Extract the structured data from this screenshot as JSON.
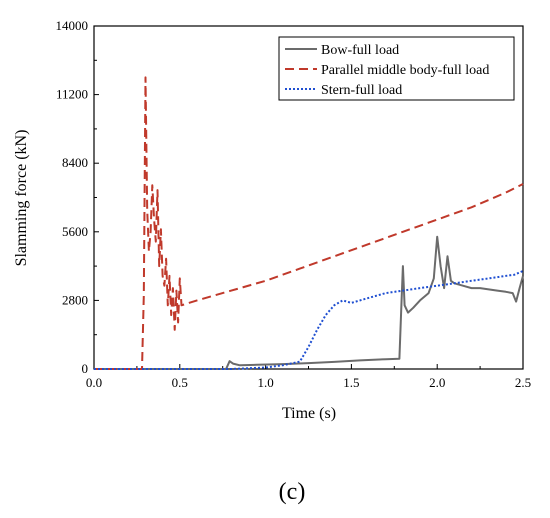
{
  "chart_data": {
    "type": "line",
    "title": "",
    "xlabel": "Time (s)",
    "ylabel": "Slamming force (kN)",
    "xlim": [
      0.0,
      2.5
    ],
    "ylim": [
      0,
      14000
    ],
    "x_ticks": [
      "0.0",
      "0.5",
      "1.0",
      "1.5",
      "2.0",
      "2.5"
    ],
    "y_ticks": [
      "0",
      "2800",
      "5600",
      "8400",
      "11200",
      "14000"
    ],
    "grid": false,
    "legend_position": "top-right",
    "panel_label": "(c)",
    "series": [
      {
        "name": "Bow-full load",
        "color": "#6b6b6b",
        "style": "solid",
        "points": [
          [
            0.0,
            0
          ],
          [
            0.77,
            0
          ],
          [
            0.79,
            320
          ],
          [
            0.81,
            220
          ],
          [
            0.85,
            150
          ],
          [
            0.95,
            170
          ],
          [
            1.1,
            200
          ],
          [
            1.25,
            240
          ],
          [
            1.4,
            290
          ],
          [
            1.55,
            350
          ],
          [
            1.7,
            400
          ],
          [
            1.78,
            420
          ],
          [
            1.79,
            2400
          ],
          [
            1.8,
            4200
          ],
          [
            1.81,
            2600
          ],
          [
            1.83,
            2300
          ],
          [
            1.86,
            2500
          ],
          [
            1.9,
            2800
          ],
          [
            1.95,
            3100
          ],
          [
            1.98,
            3700
          ],
          [
            2.0,
            5400
          ],
          [
            2.02,
            4200
          ],
          [
            2.04,
            3300
          ],
          [
            2.06,
            4600
          ],
          [
            2.08,
            3600
          ],
          [
            2.1,
            3500
          ],
          [
            2.15,
            3400
          ],
          [
            2.2,
            3300
          ],
          [
            2.25,
            3300
          ],
          [
            2.3,
            3250
          ],
          [
            2.35,
            3200
          ],
          [
            2.4,
            3150
          ],
          [
            2.44,
            3100
          ],
          [
            2.46,
            2750
          ],
          [
            2.48,
            3300
          ],
          [
            2.5,
            3800
          ]
        ]
      },
      {
        "name": "Parallel middle body-full load",
        "color": "#c0392b",
        "style": "dashed",
        "points": [
          [
            0.0,
            0
          ],
          [
            0.28,
            0
          ],
          [
            0.29,
            3000
          ],
          [
            0.3,
            11900
          ],
          [
            0.31,
            6500
          ],
          [
            0.32,
            4800
          ],
          [
            0.33,
            5600
          ],
          [
            0.34,
            7500
          ],
          [
            0.35,
            6100
          ],
          [
            0.36,
            5200
          ],
          [
            0.37,
            7300
          ],
          [
            0.38,
            4200
          ],
          [
            0.39,
            5700
          ],
          [
            0.4,
            3800
          ],
          [
            0.41,
            3400
          ],
          [
            0.42,
            4500
          ],
          [
            0.43,
            2600
          ],
          [
            0.44,
            3800
          ],
          [
            0.45,
            2200
          ],
          [
            0.46,
            3300
          ],
          [
            0.47,
            1600
          ],
          [
            0.48,
            3200
          ],
          [
            0.49,
            1900
          ],
          [
            0.5,
            3700
          ],
          [
            0.51,
            2600
          ],
          [
            0.6,
            2800
          ],
          [
            0.8,
            3200
          ],
          [
            1.0,
            3600
          ],
          [
            1.2,
            4100
          ],
          [
            1.4,
            4600
          ],
          [
            1.6,
            5100
          ],
          [
            1.8,
            5600
          ],
          [
            2.0,
            6100
          ],
          [
            2.2,
            6600
          ],
          [
            2.4,
            7200
          ],
          [
            2.5,
            7550
          ]
        ]
      },
      {
        "name": "Stern-full load",
        "color": "#1f4fd1",
        "style": "dotted",
        "points": [
          [
            0.0,
            0
          ],
          [
            0.8,
            0
          ],
          [
            1.0,
            60
          ],
          [
            1.1,
            150
          ],
          [
            1.2,
            300
          ],
          [
            1.25,
            900
          ],
          [
            1.3,
            1600
          ],
          [
            1.35,
            2200
          ],
          [
            1.4,
            2600
          ],
          [
            1.45,
            2800
          ],
          [
            1.5,
            2700
          ],
          [
            1.55,
            2800
          ],
          [
            1.6,
            2900
          ],
          [
            1.7,
            3100
          ],
          [
            1.8,
            3200
          ],
          [
            1.9,
            3300
          ],
          [
            2.0,
            3400
          ],
          [
            2.1,
            3500
          ],
          [
            2.2,
            3600
          ],
          [
            2.3,
            3700
          ],
          [
            2.4,
            3800
          ],
          [
            2.45,
            3850
          ],
          [
            2.5,
            4000
          ]
        ]
      }
    ]
  }
}
